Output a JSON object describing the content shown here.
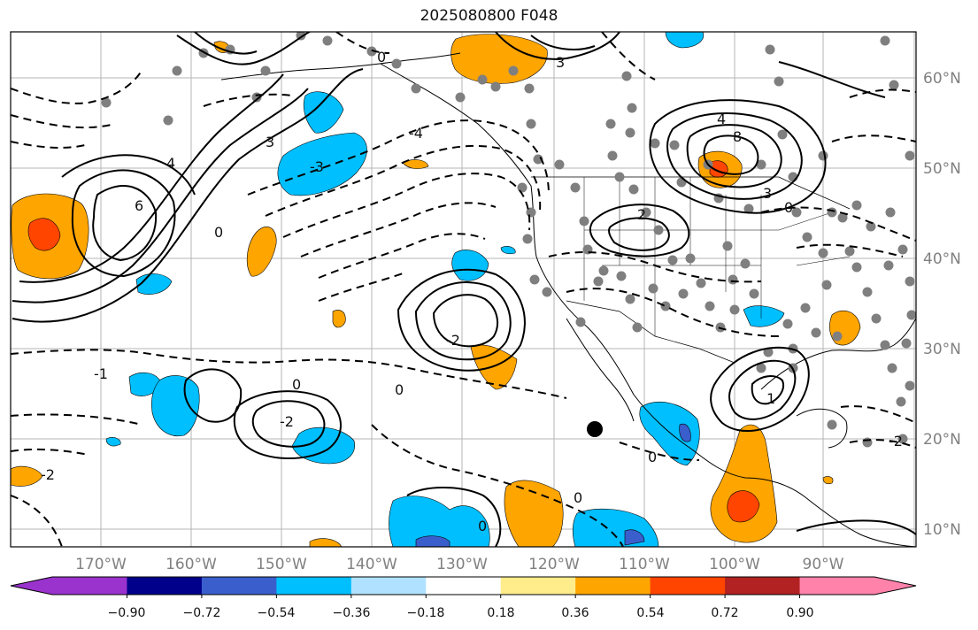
{
  "title": "2025080800 F048",
  "longitude_labels": [
    "170°W",
    "160°W",
    "150°W",
    "140°W",
    "130°W",
    "120°W",
    "110°W",
    "100°W",
    "90°W"
  ],
  "latitude_labels": [
    "60°N",
    "50°N",
    "40°N",
    "30°N",
    "20°N",
    "10°N"
  ],
  "colorbar": {
    "labels": [
      "−0.90",
      "−0.72",
      "−0.54",
      "−0.36",
      "−0.18",
      "0.18",
      "0.36",
      "0.54",
      "0.72",
      "0.90"
    ],
    "colors": [
      "#9a32cd",
      "#00008b",
      "#3a5fcd",
      "#00bfff",
      "#b0e2ff",
      "#ffffff",
      "#ffec8b",
      "#ffa500",
      "#ff4500",
      "#b22222",
      "#ff82ab"
    ]
  },
  "contour_labels": [
    "6",
    "4",
    "3",
    "2",
    "0",
    "-1",
    "-2",
    "-3",
    "-4",
    "1",
    "8"
  ],
  "fill_colors": {
    "blue": "#00bfff",
    "dark_blue": "#3a5fcd",
    "orange": "#ffa500",
    "red": "#ff4500"
  }
}
